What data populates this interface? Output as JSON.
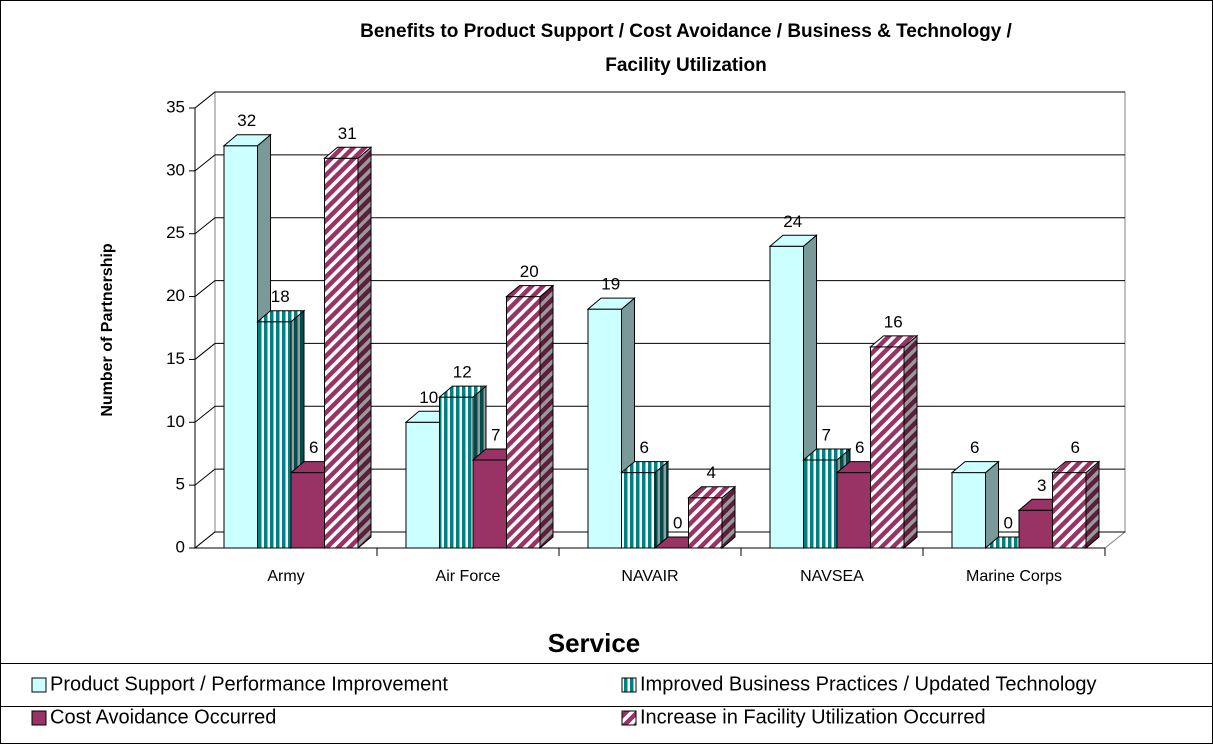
{
  "chart_data": {
    "type": "bar3d",
    "title": [
      "Benefits to Product Support / Cost Avoidance / Business & Technology /",
      "Facility Utilization"
    ],
    "x_label": "Service",
    "y_label": "Number of Partnership",
    "categories": [
      "Army",
      "Air Force",
      "NAVAIR",
      "NAVSEA",
      "Marine Corps"
    ],
    "series": [
      {
        "name": "Product Support / Performance Improvement",
        "color": "#ccffff",
        "pattern": "solid",
        "values": [
          32,
          10,
          19,
          24,
          6
        ]
      },
      {
        "name": "Improved Business Practices / Updated Technology",
        "color": "#008080",
        "pattern": "vertical",
        "values": [
          18,
          12,
          6,
          7,
          0
        ]
      },
      {
        "name": "Cost Avoidance Occurred",
        "color": "#993366",
        "pattern": "solid",
        "values": [
          6,
          7,
          0,
          6,
          3
        ]
      },
      {
        "name": "Increase in Facility Utilization Occurred",
        "color": "#993366",
        "pattern": "diagonal",
        "values": [
          31,
          20,
          4,
          16,
          6
        ]
      }
    ],
    "ylim": [
      0,
      35
    ],
    "yticks": [
      0,
      5,
      10,
      15,
      20,
      25,
      30,
      35
    ],
    "grid": true,
    "legend": "bottom"
  }
}
